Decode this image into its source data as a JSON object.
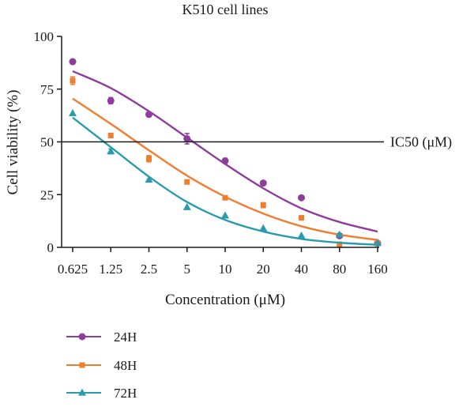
{
  "chart_data": {
    "type": "scatter",
    "title": "K510 cell lines",
    "xlabel": "Concentration (μM)",
    "ylabel": "Cell viability (%)",
    "x_scale": "log2",
    "x_ticks": [
      0.625,
      1.25,
      2.5,
      5,
      10,
      20,
      40,
      80,
      160
    ],
    "x_tick_labels": [
      "0.625",
      "1.25",
      "2.5",
      "5",
      "10",
      "20",
      "40",
      "80",
      "160"
    ],
    "ylim": [
      0,
      100
    ],
    "y_ticks": [
      0,
      25,
      50,
      75,
      100
    ],
    "y_tick_labels": [
      "0",
      "25",
      "50",
      "75",
      "100"
    ],
    "grid": false,
    "legend_position": "bottom-left",
    "reference_line": {
      "y": 50,
      "label": "IC50 (μM)",
      "color": "#1a1a1a"
    },
    "series": [
      {
        "name": "24H",
        "marker": "circle",
        "color": "#8e3d9c",
        "points": [
          {
            "x": 0.625,
            "y": 88
          },
          {
            "x": 1.25,
            "y": 69.5,
            "err": 1.5
          },
          {
            "x": 2.5,
            "y": 63
          },
          {
            "x": 5,
            "y": 51.5,
            "err": 2.5
          },
          {
            "x": 10,
            "y": 41,
            "err": 1.2
          },
          {
            "x": 20,
            "y": 30.5
          },
          {
            "x": 40,
            "y": 23.5
          },
          {
            "x": 80,
            "y": 5.5
          },
          {
            "x": 160,
            "y": 2
          }
        ],
        "fit": [
          {
            "x": 0.625,
            "y": 83.5
          },
          {
            "x": 1.25,
            "y": 75.5
          },
          {
            "x": 2.5,
            "y": 64.5
          },
          {
            "x": 5,
            "y": 52
          },
          {
            "x": 10,
            "y": 39.5
          },
          {
            "x": 20,
            "y": 28
          },
          {
            "x": 40,
            "y": 18.5
          },
          {
            "x": 80,
            "y": 12
          },
          {
            "x": 160,
            "y": 7.5
          }
        ]
      },
      {
        "name": "48H",
        "marker": "square",
        "color": "#f07d2e",
        "points": [
          {
            "x": 0.625,
            "y": 79,
            "err": 1.8
          },
          {
            "x": 1.25,
            "y": 53
          },
          {
            "x": 2.5,
            "y": 42,
            "err": 1.5
          },
          {
            "x": 5,
            "y": 31
          },
          {
            "x": 10,
            "y": 23.5
          },
          {
            "x": 20,
            "y": 20,
            "err": 1.2
          },
          {
            "x": 40,
            "y": 14
          },
          {
            "x": 80,
            "y": 1.5
          },
          {
            "x": 160,
            "y": 2
          }
        ],
        "fit": [
          {
            "x": 0.625,
            "y": 70.5
          },
          {
            "x": 1.25,
            "y": 58.5
          },
          {
            "x": 2.5,
            "y": 46
          },
          {
            "x": 5,
            "y": 34
          },
          {
            "x": 10,
            "y": 24
          },
          {
            "x": 20,
            "y": 16
          },
          {
            "x": 40,
            "y": 10
          },
          {
            "x": 80,
            "y": 6
          },
          {
            "x": 160,
            "y": 3.5
          }
        ]
      },
      {
        "name": "72H",
        "marker": "triangle",
        "color": "#2a9bad",
        "points": [
          {
            "x": 0.625,
            "y": 63.5
          },
          {
            "x": 1.25,
            "y": 45.5,
            "err": 1.2
          },
          {
            "x": 2.5,
            "y": 32
          },
          {
            "x": 5,
            "y": 19
          },
          {
            "x": 10,
            "y": 15
          },
          {
            "x": 20,
            "y": 9
          },
          {
            "x": 40,
            "y": 5.5
          },
          {
            "x": 80,
            "y": 6
          },
          {
            "x": 160,
            "y": 2
          }
        ],
        "fit": [
          {
            "x": 0.625,
            "y": 61.5
          },
          {
            "x": 1.25,
            "y": 47.5
          },
          {
            "x": 2.5,
            "y": 33.5
          },
          {
            "x": 5,
            "y": 21.5
          },
          {
            "x": 10,
            "y": 13
          },
          {
            "x": 20,
            "y": 7.5
          },
          {
            "x": 40,
            "y": 4
          },
          {
            "x": 80,
            "y": 2.2
          },
          {
            "x": 160,
            "y": 1.2
          }
        ]
      }
    ]
  }
}
